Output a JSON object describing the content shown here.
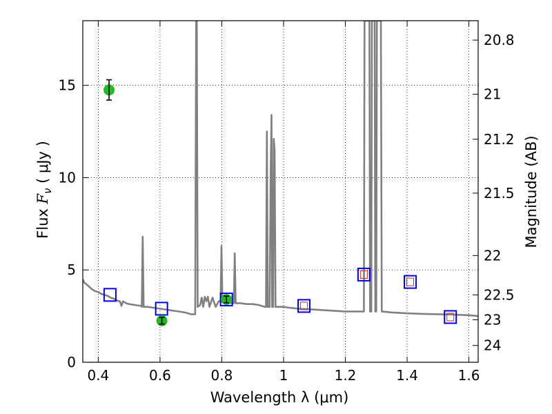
{
  "chart_data": {
    "type": "line",
    "xlabel": "Wavelength  λ (μm)",
    "ylabel": "Flux  F_ν  ( μJy )",
    "ylabel_parts": {
      "prefix": "Flux  ",
      "symbol": "F",
      "subscript": "ν",
      "suffix": "  ( μJy )"
    },
    "y2label": "Magnitude (AB)",
    "xlim": [
      0.35,
      1.63
    ],
    "ylim": [
      0,
      18.5
    ],
    "grid": true,
    "x_ticks": [
      {
        "value": 0.4,
        "label": "0.4"
      },
      {
        "value": 0.6,
        "label": "0.6"
      },
      {
        "value": 0.8,
        "label": "0.8"
      },
      {
        "value": 1.0,
        "label": "1"
      },
      {
        "value": 1.2,
        "label": "1.2"
      },
      {
        "value": 1.4,
        "label": "1.4"
      },
      {
        "value": 1.6,
        "label": "1.6"
      }
    ],
    "y_ticks": [
      {
        "value": 0,
        "label": "0"
      },
      {
        "value": 5,
        "label": "5"
      },
      {
        "value": 10,
        "label": "10"
      },
      {
        "value": 15,
        "label": "15"
      }
    ],
    "y2_ticks": [
      {
        "label": "20.8",
        "flux": 17.45
      },
      {
        "label": "21",
        "flux": 14.52
      },
      {
        "label": "21.2",
        "flux": 12.08
      },
      {
        "label": "21.5",
        "flux": 9.16
      },
      {
        "label": "22",
        "flux": 5.78
      },
      {
        "label": "22.5",
        "flux": 3.65
      },
      {
        "label": "23",
        "flux": 2.3
      },
      {
        "label": "24",
        "flux": 0.91
      }
    ],
    "model_spectrum": {
      "color": "#808080",
      "points": [
        [
          0.35,
          4.5
        ],
        [
          0.355,
          4.3
        ],
        [
          0.36,
          4.25
        ],
        [
          0.37,
          4.1
        ],
        [
          0.38,
          3.95
        ],
        [
          0.39,
          3.85
        ],
        [
          0.4,
          3.8
        ],
        [
          0.41,
          3.7
        ],
        [
          0.42,
          3.65
        ],
        [
          0.43,
          3.6
        ],
        [
          0.44,
          3.5
        ],
        [
          0.45,
          3.45
        ],
        [
          0.46,
          3.35
        ],
        [
          0.47,
          3.3
        ],
        [
          0.475,
          3.05
        ],
        [
          0.48,
          3.3
        ],
        [
          0.49,
          3.2
        ],
        [
          0.5,
          3.15
        ],
        [
          0.52,
          3.1
        ],
        [
          0.54,
          3.05
        ],
        [
          0.541,
          3.0
        ],
        [
          0.544,
          6.8
        ],
        [
          0.547,
          3.0
        ],
        [
          0.56,
          3.0
        ],
        [
          0.58,
          2.95
        ],
        [
          0.6,
          2.9
        ],
        [
          0.62,
          2.85
        ],
        [
          0.64,
          2.8
        ],
        [
          0.66,
          2.75
        ],
        [
          0.68,
          2.7
        ],
        [
          0.7,
          2.6
        ],
        [
          0.71,
          2.6
        ],
        [
          0.714,
          2.6
        ],
        [
          0.717,
          18.5
        ],
        [
          0.719,
          18.5
        ],
        [
          0.722,
          3.0
        ],
        [
          0.73,
          3.1
        ],
        [
          0.735,
          3.5
        ],
        [
          0.74,
          3.0
        ],
        [
          0.745,
          3.55
        ],
        [
          0.75,
          3.3
        ],
        [
          0.755,
          3.55
        ],
        [
          0.76,
          3.0
        ],
        [
          0.77,
          3.5
        ],
        [
          0.78,
          3.0
        ],
        [
          0.79,
          3.3
        ],
        [
          0.796,
          3.3
        ],
        [
          0.799,
          6.3
        ],
        [
          0.802,
          3.3
        ],
        [
          0.81,
          3.4
        ],
        [
          0.82,
          3.3
        ],
        [
          0.83,
          3.2
        ],
        [
          0.839,
          3.2
        ],
        [
          0.842,
          5.9
        ],
        [
          0.845,
          3.2
        ],
        [
          0.86,
          3.2
        ],
        [
          0.88,
          3.15
        ],
        [
          0.9,
          3.15
        ],
        [
          0.92,
          3.1
        ],
        [
          0.94,
          3.0
        ],
        [
          0.943,
          3.0
        ],
        [
          0.946,
          12.5
        ],
        [
          0.949,
          3.0
        ],
        [
          0.955,
          3.0
        ],
        [
          0.958,
          10.0
        ],
        [
          0.961,
          13.4
        ],
        [
          0.963,
          3.0
        ],
        [
          0.966,
          3.0
        ],
        [
          0.968,
          12.1
        ],
        [
          0.971,
          11.5
        ],
        [
          0.974,
          3.0
        ],
        [
          0.98,
          3.0
        ],
        [
          1.0,
          3.0
        ],
        [
          1.02,
          2.95
        ],
        [
          1.05,
          2.9
        ],
        [
          1.1,
          2.85
        ],
        [
          1.15,
          2.8
        ],
        [
          1.2,
          2.75
        ],
        [
          1.25,
          2.75
        ],
        [
          1.26,
          2.75
        ],
        [
          1.262,
          18.5
        ],
        [
          1.278,
          18.5
        ],
        [
          1.28,
          2.75
        ],
        [
          1.284,
          2.75
        ],
        [
          1.286,
          18.5
        ],
        [
          1.295,
          18.5
        ],
        [
          1.297,
          2.75
        ],
        [
          1.3,
          2.75
        ],
        [
          1.302,
          18.5
        ],
        [
          1.315,
          18.5
        ],
        [
          1.318,
          2.75
        ],
        [
          1.35,
          2.7
        ],
        [
          1.4,
          2.65
        ],
        [
          1.45,
          2.62
        ],
        [
          1.5,
          2.6
        ],
        [
          1.55,
          2.58
        ],
        [
          1.6,
          2.55
        ],
        [
          1.63,
          2.5
        ]
      ]
    },
    "model_photometry": {
      "color": "#0000ee",
      "values": [
        {
          "x": 0.438,
          "y": 3.65
        },
        {
          "x": 0.605,
          "y": 2.9
        },
        {
          "x": 0.815,
          "y": 3.4
        },
        {
          "x": 1.066,
          "y": 3.05
        },
        {
          "x": 1.26,
          "y": 4.75
        },
        {
          "x": 1.41,
          "y": 4.35
        },
        {
          "x": 1.54,
          "y": 2.45
        }
      ]
    },
    "upper_limits": {
      "color": "#dd2222",
      "values": [
        {
          "x": 1.066,
          "y": 3.05
        },
        {
          "x": 1.26,
          "y": 4.75
        },
        {
          "x": 1.41,
          "y": 4.35
        },
        {
          "x": 1.54,
          "y": 2.45
        }
      ]
    },
    "observed": {
      "color": "#22bb22",
      "values": [
        {
          "x": 0.435,
          "y": 14.75,
          "err": 0.55
        },
        {
          "x": 0.606,
          "y": 2.25,
          "err": 0.18
        },
        {
          "x": 0.815,
          "y": 3.4,
          "err": 0.18
        }
      ]
    }
  }
}
